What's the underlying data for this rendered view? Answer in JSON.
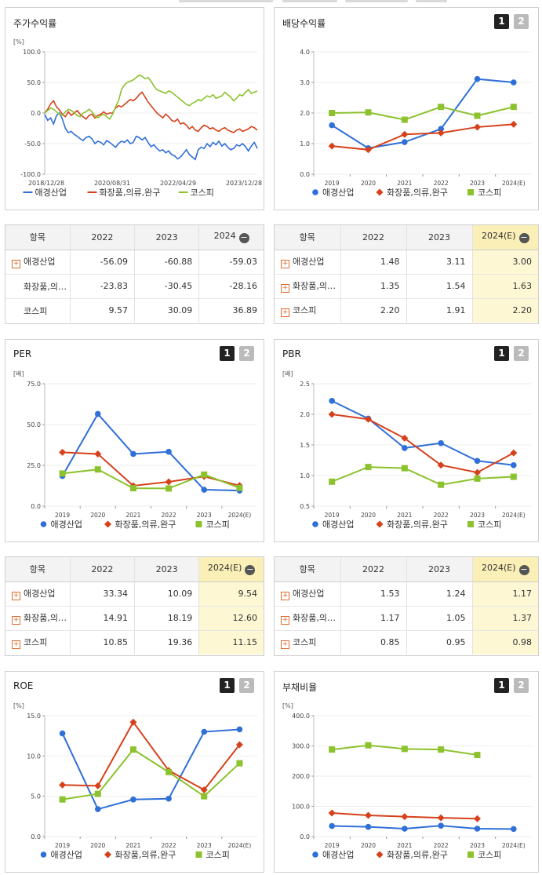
{
  "legend_common": [
    "애경산업",
    "화장품,의류,완구",
    "코스피"
  ],
  "colors": {
    "애경산업": "#2f6fd8",
    "화장품,의류,완구": "#d6411b",
    "코스피": "#8cc22e"
  },
  "panels": {
    "stock": {
      "title": "주가수익률",
      "unit": "[%]"
    },
    "dividend": {
      "title": "배당수익률",
      "unit": "",
      "btn1": "1",
      "btn2": "2"
    },
    "per": {
      "title": "PER",
      "unit": "[배]",
      "btn1": "1",
      "btn2": "2"
    },
    "pbr": {
      "title": "PBR",
      "unit": "[배]",
      "btn1": "1",
      "btn2": "2"
    },
    "roe": {
      "title": "ROE",
      "unit": "[%]",
      "btn1": "1",
      "btn2": "2"
    },
    "debt": {
      "title": "부채비율",
      "unit": "[%]",
      "btn1": "1",
      "btn2": "2"
    }
  },
  "tables": {
    "stock": {
      "headers": [
        "항목",
        "2022",
        "2023",
        "2024"
      ],
      "rows": [
        {
          "name": "애경산업",
          "plus": true,
          "values": [
            "-56.09",
            "-60.88",
            "-59.03"
          ]
        },
        {
          "name": "화장품,의…",
          "plus": false,
          "values": [
            "-23.83",
            "-30.45",
            "-28.16"
          ]
        },
        {
          "name": "코스피",
          "plus": false,
          "values": [
            "9.57",
            "30.09",
            "36.89"
          ]
        }
      ]
    },
    "dividend": {
      "headers": [
        "항목",
        "2022",
        "2023",
        "2024(E)"
      ],
      "rows": [
        {
          "name": "애경산업",
          "plus": true,
          "values": [
            "1.48",
            "3.11",
            "3.00"
          ]
        },
        {
          "name": "화장품,의…",
          "plus": true,
          "values": [
            "1.35",
            "1.54",
            "1.63"
          ]
        },
        {
          "name": "코스피",
          "plus": true,
          "values": [
            "2.20",
            "1.91",
            "2.20"
          ]
        }
      ]
    },
    "per": {
      "headers": [
        "항목",
        "2022",
        "2023",
        "2024(E)"
      ],
      "rows": [
        {
          "name": "애경산업",
          "plus": true,
          "values": [
            "33.34",
            "10.09",
            "9.54"
          ]
        },
        {
          "name": "화장품,의…",
          "plus": true,
          "values": [
            "14.91",
            "18.19",
            "12.60"
          ]
        },
        {
          "name": "코스피",
          "plus": true,
          "values": [
            "10.85",
            "19.36",
            "11.15"
          ]
        }
      ]
    },
    "pbr": {
      "headers": [
        "항목",
        "2022",
        "2023",
        "2024(E)"
      ],
      "rows": [
        {
          "name": "애경산업",
          "plus": true,
          "values": [
            "1.53",
            "1.24",
            "1.17"
          ]
        },
        {
          "name": "화장품,의…",
          "plus": true,
          "values": [
            "1.17",
            "1.05",
            "1.37"
          ]
        },
        {
          "name": "코스피",
          "plus": true,
          "values": [
            "0.85",
            "0.95",
            "0.98"
          ]
        }
      ]
    }
  },
  "chart_data": [
    {
      "id": "stock",
      "type": "line",
      "title": "주가수익률",
      "ylabel": "[%]",
      "yticks": [
        "100.0",
        "50.0",
        "0.0",
        "-50.0",
        "-100.0"
      ],
      "ylim": [
        -100,
        100
      ],
      "xticks": [
        "2018/12/28",
        "2020/08/31",
        "2022/04/29",
        "2023/12/28"
      ],
      "series": [
        {
          "name": "애경산업",
          "values": [
            -2,
            -12,
            -8,
            -18,
            -4,
            0,
            -10,
            -25,
            -32,
            -30,
            -35,
            -38,
            -42,
            -45,
            -40,
            -38,
            -42,
            -50,
            -46,
            -48,
            -52,
            -45,
            -48,
            -52,
            -56,
            -50,
            -46,
            -48,
            -44,
            -50,
            -48,
            -38,
            -40,
            -44,
            -40,
            -48,
            -55,
            -52,
            -58,
            -62,
            -60,
            -65,
            -62,
            -68,
            -70,
            -75,
            -72,
            -66,
            -60,
            -68,
            -72,
            -76,
            -60,
            -56,
            -58,
            -50,
            -55,
            -48,
            -52,
            -46,
            -54,
            -50,
            -56,
            -60,
            -58,
            -52,
            -54,
            -50,
            -55,
            -62,
            -54,
            -48,
            -58
          ]
        },
        {
          "name": "화장품,의류,완구",
          "values": [
            0,
            6,
            15,
            20,
            10,
            5,
            -2,
            -6,
            2,
            -4,
            0,
            4,
            -2,
            -6,
            -10,
            -4,
            -2,
            -8,
            -4,
            -2,
            2,
            -2,
            0,
            0,
            8,
            12,
            10,
            14,
            18,
            22,
            20,
            24,
            30,
            34,
            26,
            18,
            12,
            6,
            0,
            -4,
            -8,
            -2,
            -6,
            -12,
            -14,
            -10,
            -18,
            -16,
            -20,
            -26,
            -22,
            -28,
            -30,
            -24,
            -20,
            -22,
            -26,
            -24,
            -28,
            -30,
            -26,
            -24,
            -28,
            -30,
            -32,
            -28,
            -26,
            -30,
            -28,
            -26,
            -22,
            -24,
            -28
          ]
        },
        {
          "name": "코스피",
          "values": [
            0,
            4,
            8,
            6,
            2,
            -2,
            -4,
            2,
            6,
            4,
            0,
            -4,
            -6,
            0,
            2,
            6,
            2,
            -4,
            -8,
            -4,
            -2,
            -6,
            -10,
            -2,
            10,
            20,
            38,
            46,
            50,
            52,
            54,
            58,
            62,
            60,
            56,
            58,
            52,
            44,
            38,
            36,
            34,
            32,
            36,
            34,
            30,
            26,
            22,
            18,
            14,
            12,
            16,
            18,
            22,
            20,
            24,
            28,
            26,
            30,
            24,
            26,
            28,
            34,
            30,
            26,
            20,
            24,
            30,
            28,
            34,
            38,
            32,
            34,
            36
          ]
        }
      ]
    },
    {
      "id": "dividend",
      "type": "line",
      "title": "배당수익률",
      "yticks": [
        "4.0",
        "3.0",
        "2.0",
        "1.0",
        "0.0"
      ],
      "ylim": [
        0,
        4
      ],
      "categories": [
        "2019",
        "2020",
        "2021",
        "2022",
        "2023",
        "2024(E)"
      ],
      "series": [
        {
          "name": "애경산업",
          "values": [
            1.6,
            0.85,
            1.05,
            1.48,
            3.11,
            3.0
          ]
        },
        {
          "name": "화장품,의류,완구",
          "values": [
            0.92,
            0.8,
            1.3,
            1.35,
            1.54,
            1.63
          ]
        },
        {
          "name": "코스피",
          "values": [
            2.0,
            2.02,
            1.78,
            2.2,
            1.91,
            2.2
          ]
        }
      ]
    },
    {
      "id": "per",
      "type": "line",
      "title": "PER",
      "ylabel": "[배]",
      "yticks": [
        "75.0",
        "50.0",
        "25.0",
        "0.0"
      ],
      "ylim": [
        0,
        75
      ],
      "categories": [
        "2019",
        "2020",
        "2021",
        "2022",
        "2023",
        "2024(E)"
      ],
      "series": [
        {
          "name": "애경산업",
          "values": [
            18.5,
            56.5,
            32.0,
            33.34,
            10.09,
            9.54
          ]
        },
        {
          "name": "화장품,의류,완구",
          "values": [
            33.0,
            32.0,
            12.5,
            14.91,
            18.19,
            12.6
          ]
        },
        {
          "name": "코스피",
          "values": [
            20.0,
            22.5,
            11.0,
            10.85,
            19.36,
            11.15
          ]
        }
      ]
    },
    {
      "id": "pbr",
      "type": "line",
      "title": "PBR",
      "ylabel": "[배]",
      "yticks": [
        "2.5",
        "2.0",
        "1.5",
        "1.0",
        "0.5"
      ],
      "ylim": [
        0.5,
        2.5
      ],
      "categories": [
        "2019",
        "2020",
        "2021",
        "2022",
        "2023",
        "2024(E)"
      ],
      "series": [
        {
          "name": "애경산업",
          "values": [
            2.22,
            1.93,
            1.45,
            1.53,
            1.24,
            1.17
          ]
        },
        {
          "name": "화장품,의류,완구",
          "values": [
            2.0,
            1.92,
            1.61,
            1.17,
            1.05,
            1.37
          ]
        },
        {
          "name": "코스피",
          "values": [
            0.9,
            1.14,
            1.12,
            0.85,
            0.95,
            0.98
          ]
        }
      ]
    },
    {
      "id": "roe",
      "type": "line",
      "title": "ROE",
      "ylabel": "[%]",
      "yticks": [
        "15.0",
        "10.0",
        "5.0",
        "0.0"
      ],
      "ylim": [
        0,
        15
      ],
      "categories": [
        "2019",
        "2020",
        "2021",
        "2022",
        "2023",
        "2024(E)"
      ],
      "series": [
        {
          "name": "애경산업",
          "values": [
            12.8,
            3.4,
            4.6,
            4.7,
            13.0,
            13.3
          ]
        },
        {
          "name": "화장품,의류,완구",
          "values": [
            6.4,
            6.3,
            14.2,
            8.2,
            5.8,
            11.4
          ]
        },
        {
          "name": "코스피",
          "values": [
            4.6,
            5.3,
            10.8,
            8.0,
            5.0,
            9.1
          ]
        }
      ]
    },
    {
      "id": "debt",
      "type": "line",
      "title": "부채비율",
      "ylabel": "[%]",
      "yticks": [
        "400.0",
        "300.0",
        "200.0",
        "100.0",
        "0.0"
      ],
      "ylim": [
        0,
        400
      ],
      "categories": [
        "2019",
        "2020",
        "2021",
        "2022",
        "2023",
        "2024(E)"
      ],
      "series": [
        {
          "name": "애경산업",
          "values": [
            35,
            32,
            26,
            36,
            26,
            25
          ]
        },
        {
          "name": "화장품,의류,완구",
          "values": [
            78,
            70,
            66,
            62,
            59,
            null
          ]
        },
        {
          "name": "코스피",
          "values": [
            288,
            302,
            290,
            288,
            270,
            null
          ]
        }
      ]
    }
  ]
}
